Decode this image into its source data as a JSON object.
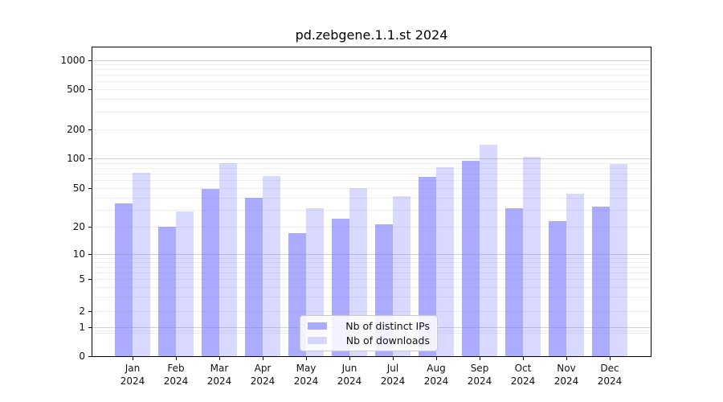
{
  "chart_data": {
    "type": "bar",
    "title": "pd.zebgene.1.1.st 2024",
    "categories": [
      "Jan",
      "Feb",
      "Mar",
      "Apr",
      "May",
      "Jun",
      "Jul",
      "Aug",
      "Sep",
      "Oct",
      "Nov",
      "Dec"
    ],
    "year": "2024",
    "series": [
      {
        "name": "Nb of distinct IPs",
        "color": "rgba(119,119,255,0.62)",
        "values": [
          35,
          20,
          49,
          40,
          17,
          24,
          21,
          65,
          95,
          31,
          23,
          32
        ]
      },
      {
        "name": "Nb of downloads",
        "color": "rgba(119,119,255,0.28)",
        "values": [
          71,
          29,
          89,
          66,
          31,
          50,
          41,
          81,
          138,
          104,
          44,
          88
        ]
      }
    ],
    "xlabel": "",
    "ylabel": "",
    "yscale": "symlog-like",
    "ylim": [
      0,
      1455
    ],
    "yticks": [
      {
        "v": 0,
        "label": "0"
      },
      {
        "v": 1,
        "label": "1"
      },
      {
        "v": 2,
        "label": "2"
      },
      {
        "v": 5,
        "label": "5"
      },
      {
        "v": 10,
        "label": "10"
      },
      {
        "v": 20,
        "label": "20"
      },
      {
        "v": 50,
        "label": "50"
      },
      {
        "v": 100,
        "label": "100"
      },
      {
        "v": 200,
        "label": "200"
      },
      {
        "v": 500,
        "label": "500"
      },
      {
        "v": 1000,
        "label": "1000"
      }
    ],
    "grid": "on",
    "legend_position": "lower center",
    "colors": {
      "major_grid": "#d2d2d2",
      "minor_grid": "#efefef",
      "axis": "#000000",
      "text": "#111111"
    }
  }
}
